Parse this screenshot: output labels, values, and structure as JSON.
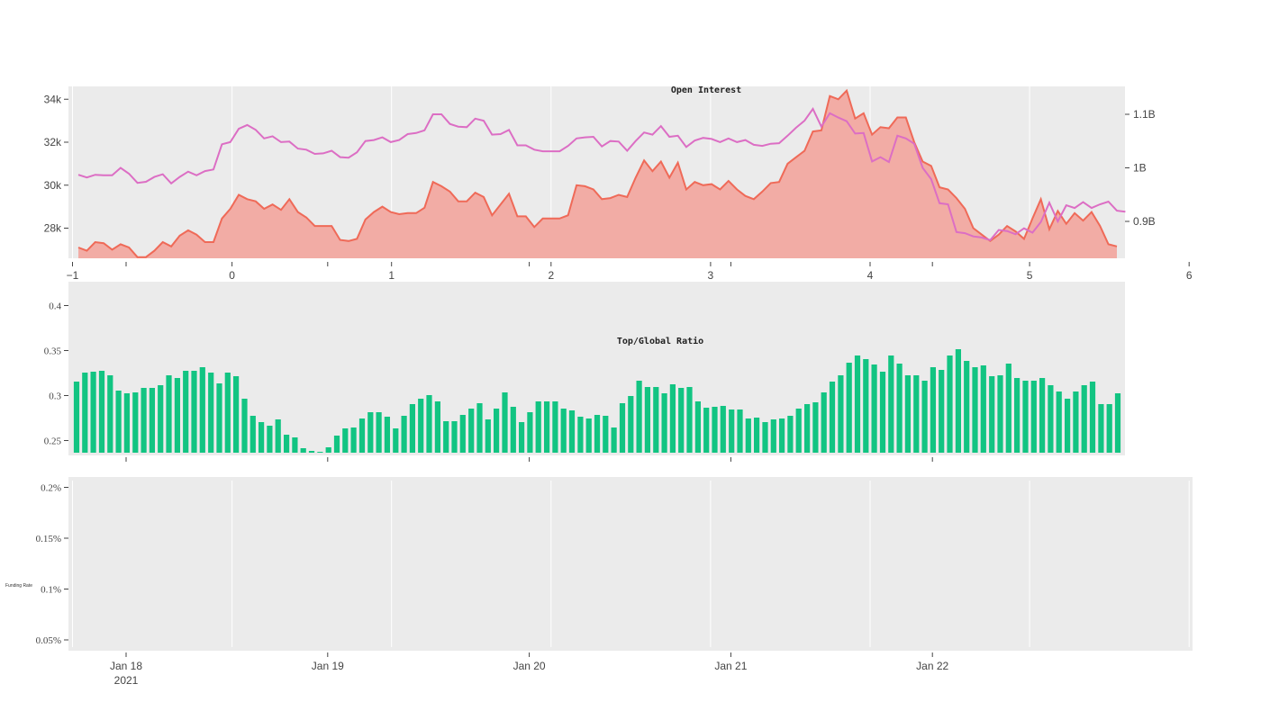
{
  "chart_data": [
    {
      "type": "area",
      "title": "Open Interest",
      "x_top_ticks": [
        "−1",
        "0",
        "1",
        "2",
        "3",
        "4",
        "5",
        "6"
      ],
      "x_range": [
        -1,
        6
      ],
      "y_left_ticks": [
        "28k",
        "30k",
        "32k",
        "34k"
      ],
      "y_left_range": [
        26600,
        34600
      ],
      "y_right_ticks": [
        "0.9B",
        "1B",
        "1.1B"
      ],
      "y_right_range": [
        0.83,
        1.147
      ],
      "colors": {
        "area_line": "#ef6a58",
        "area_fill": "#f2aca5",
        "line2": "#dc6ec4",
        "background": "#ebebeb"
      },
      "series": [
        {
          "axis": "left",
          "style": "area",
          "values": [
            27100,
            26950,
            27350,
            27300,
            27000,
            27250,
            27100,
            26650,
            26650,
            26950,
            27350,
            27150,
            27650,
            27900,
            27700,
            27350,
            27350,
            28450,
            28900,
            29550,
            29350,
            29250,
            28900,
            29100,
            28850,
            29350,
            28750,
            28500,
            28100,
            28100,
            28100,
            27450,
            27400,
            27500,
            28400,
            28750,
            29000,
            28750,
            28650,
            28700,
            28700,
            28950,
            30150,
            29950,
            29700,
            29250,
            29250,
            29650,
            29450,
            28600,
            29100,
            29600,
            28550,
            28550,
            28050,
            28450,
            28450,
            28450,
            28600,
            30000,
            29950,
            29800,
            29350,
            29400,
            29550,
            29450,
            30350,
            31150,
            30650,
            31100,
            30350,
            31050,
            29800,
            30150,
            30000,
            30050,
            29800,
            30200,
            29800,
            29500,
            29350,
            29700,
            30100,
            30150,
            31000,
            31300,
            31600,
            32500,
            32550,
            34150,
            34000,
            34400,
            33100,
            33350,
            32350,
            32700,
            32650,
            33150,
            33150,
            32000,
            31100,
            30900,
            29900,
            29800,
            29400,
            28900,
            28000,
            27700,
            27400,
            27700,
            28100,
            27850,
            27500,
            28450,
            29350,
            27950,
            28800,
            28200,
            28700,
            28350,
            28750,
            28100,
            27250,
            27150
          ]
        },
        {
          "axis": "right",
          "style": "line",
          "values": [
            0.987,
            0.982,
            0.987,
            0.986,
            0.986,
            1.0,
            0.989,
            0.972,
            0.974,
            0.983,
            0.988,
            0.971,
            0.983,
            0.993,
            0.986,
            0.994,
            0.997,
            1.044,
            1.048,
            1.073,
            1.08,
            1.071,
            1.055,
            1.059,
            1.048,
            1.049,
            1.036,
            1.034,
            1.026,
            1.027,
            1.032,
            1.02,
            1.019,
            1.029,
            1.05,
            1.052,
            1.057,
            1.048,
            1.052,
            1.063,
            1.065,
            1.07,
            1.1,
            1.1,
            1.082,
            1.077,
            1.076,
            1.092,
            1.088,
            1.062,
            1.063,
            1.071,
            1.042,
            1.042,
            1.034,
            1.031,
            1.031,
            1.031,
            1.041,
            1.055,
            1.057,
            1.058,
            1.04,
            1.05,
            1.049,
            1.032,
            1.05,
            1.066,
            1.062,
            1.078,
            1.058,
            1.06,
            1.039,
            1.051,
            1.056,
            1.054,
            1.048,
            1.055,
            1.048,
            1.052,
            1.043,
            1.041,
            1.045,
            1.046,
            1.06,
            1.075,
            1.088,
            1.11,
            1.077,
            1.102,
            1.094,
            1.087,
            1.064,
            1.065,
            1.012,
            1.02,
            1.011,
            1.06,
            1.055,
            1.045,
            1.0,
            0.979,
            0.934,
            0.932,
            0.88,
            0.878,
            0.872,
            0.87,
            0.865,
            0.884,
            0.882,
            0.876,
            0.887,
            0.879,
            0.899,
            0.935,
            0.9,
            0.93,
            0.925,
            0.936,
            0.925,
            0.932,
            0.937,
            0.92,
            0.918
          ]
        }
      ]
    },
    {
      "type": "bar",
      "title": "Top/Global Ratio",
      "y_ticks": [
        "0.25",
        "0.3",
        "0.35",
        "0.4"
      ],
      "y_range": [
        0.2365,
        0.4265
      ],
      "color": "#12c482",
      "values": [
        0.3155,
        0.3255,
        0.3265,
        0.3275,
        0.3225,
        0.3055,
        0.3025,
        0.3035,
        0.3085,
        0.3085,
        0.3115,
        0.3225,
        0.3195,
        0.3275,
        0.3275,
        0.3315,
        0.3255,
        0.3135,
        0.3255,
        0.3215,
        0.2965,
        0.2775,
        0.2705,
        0.2665,
        0.2735,
        0.2565,
        0.2535,
        0.2415,
        0.2385,
        0.2365,
        0.2425,
        0.2555,
        0.2635,
        0.2645,
        0.2745,
        0.2815,
        0.2815,
        0.2765,
        0.2635,
        0.2775,
        0.2905,
        0.2965,
        0.3005,
        0.2935,
        0.2715,
        0.2715,
        0.2785,
        0.2855,
        0.2915,
        0.2735,
        0.2855,
        0.3035,
        0.2875,
        0.2705,
        0.2815,
        0.2935,
        0.2935,
        0.2935,
        0.2855,
        0.2835,
        0.2765,
        0.2745,
        0.2785,
        0.2775,
        0.2645,
        0.2915,
        0.2995,
        0.3165,
        0.3095,
        0.3095,
        0.3025,
        0.3125,
        0.3085,
        0.3095,
        0.2935,
        0.2865,
        0.2875,
        0.2885,
        0.2845,
        0.2845,
        0.2745,
        0.2755,
        0.2705,
        0.2735,
        0.2745,
        0.2775,
        0.2855,
        0.2905,
        0.2925,
        0.3035,
        0.3155,
        0.3225,
        0.3365,
        0.3445,
        0.3405,
        0.3345,
        0.3265,
        0.3445,
        0.3355,
        0.3225,
        0.3225,
        0.3165,
        0.3315,
        0.3285,
        0.3445,
        0.3515,
        0.3385,
        0.3315,
        0.3335,
        0.3215,
        0.3225,
        0.3355,
        0.3195,
        0.3165,
        0.3165,
        0.3195,
        0.3115,
        0.3045,
        0.2965,
        0.3045,
        0.3115,
        0.3155,
        0.2905,
        0.2905,
        0.3025
      ]
    },
    {
      "type": "line",
      "title": "",
      "ylabel": "Funding Rate",
      "y_ticks": [
        "0.05%",
        "0.1%",
        "0.15%",
        "0.2%"
      ],
      "y_range": [
        0.0004,
        0.0021
      ],
      "series": []
    }
  ],
  "x_date_axis": {
    "ticks": [
      "Jan 18",
      "Jan 19",
      "Jan 20",
      "Jan 21",
      "Jan 22"
    ],
    "year_label": "2021"
  }
}
